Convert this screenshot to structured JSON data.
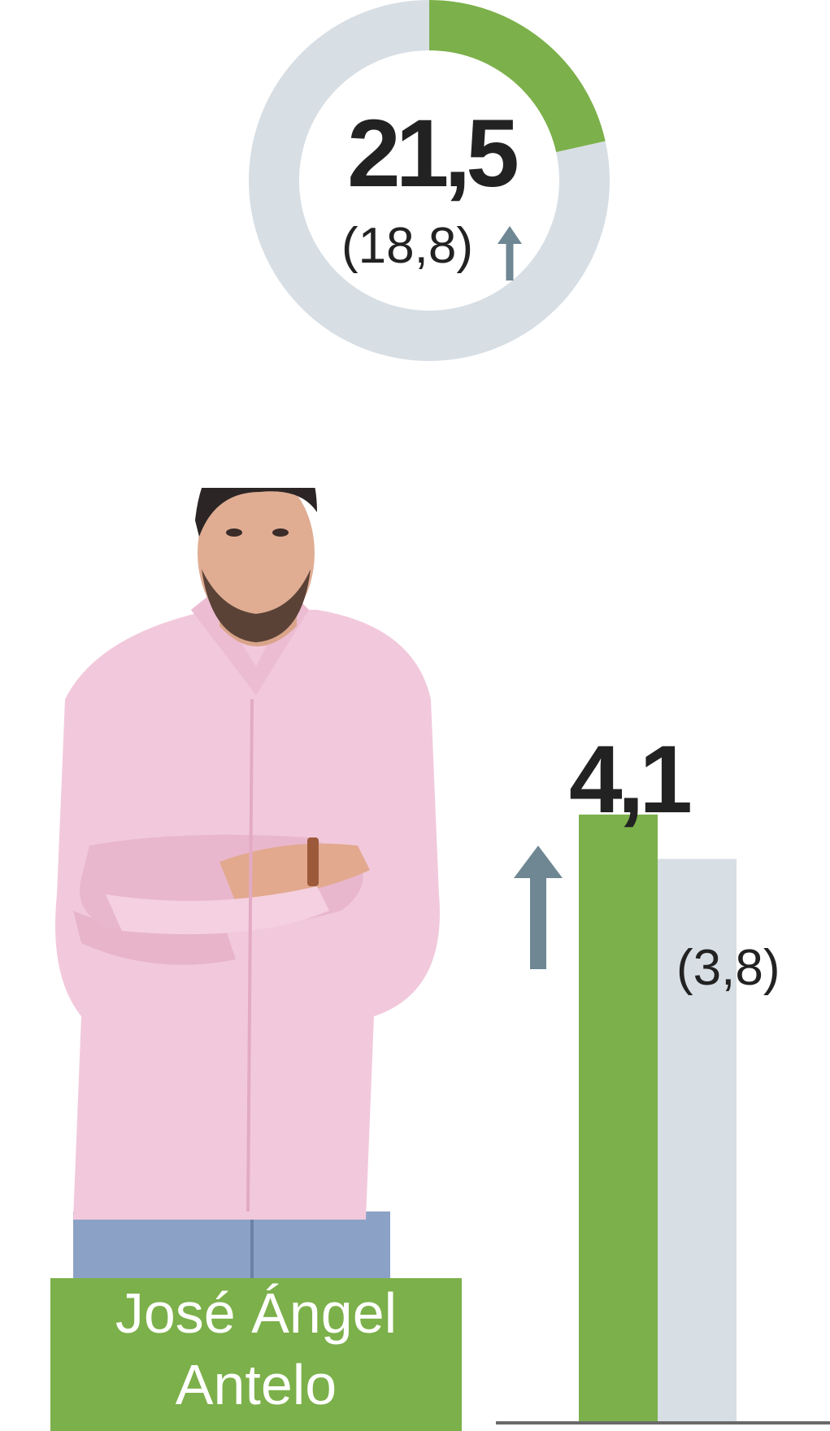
{
  "colors": {
    "current": "#7cb04a",
    "previous": "#d7dee4",
    "arrow": "#6f8793",
    "text": "#222222"
  },
  "chart_data": [
    {
      "type": "pie",
      "values": [
        21.5,
        78.5
      ],
      "value_label": "21,5",
      "previous_label": "(18,8)",
      "previous_value": 18.8,
      "trend": "up"
    },
    {
      "type": "bar",
      "series": [
        {
          "values": [
            4.1
          ],
          "label": "4,1"
        },
        {
          "values": [
            3.8
          ],
          "label": "(3,8)"
        }
      ],
      "trend": "up"
    }
  ],
  "person": {
    "name_line1": "José Ángel",
    "name_line2": "Antelo"
  },
  "icons": {
    "trend": "arrow-up-icon",
    "photo": "portrait-photo"
  }
}
